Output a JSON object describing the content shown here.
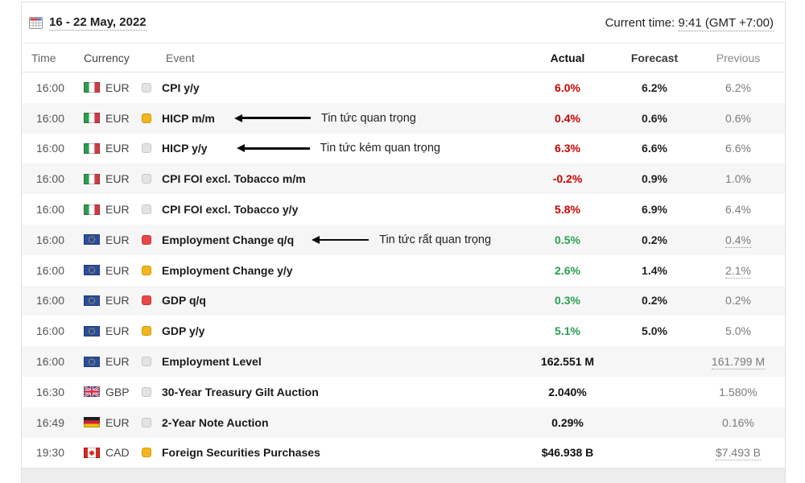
{
  "header": {
    "date_range": "16 - 22 May, 2022",
    "current_time_label": "Current time:",
    "current_time_value": "9:41 (GMT +7:00)"
  },
  "columns": {
    "time": "Time",
    "currency": "Currency",
    "event": "Event",
    "actual": "Actual",
    "forecast": "Forecast",
    "previous": "Previous"
  },
  "colors": {
    "actual_worse": "#cc0000",
    "actual_better": "#2aa052",
    "actual_neutral": "#111111",
    "impact_low": "#e3e3e3",
    "impact_medium": "#f2b51d",
    "impact_high": "#e84747"
  },
  "rows": [
    {
      "time": "16:00",
      "currency": "EUR",
      "flag": "italy",
      "impact": "low",
      "event": "CPI y/y",
      "actual": "6.0%",
      "actual_tone": "worse",
      "forecast": "6.2%",
      "previous": "6.2%",
      "previous_underlined": false
    },
    {
      "time": "16:00",
      "currency": "EUR",
      "flag": "italy",
      "impact": "medium",
      "event": "HICP m/m",
      "annotation": {
        "text": "Tin tức quan trọng",
        "gap": 24,
        "line": 86
      },
      "actual": "0.4%",
      "actual_tone": "worse",
      "forecast": "0.6%",
      "previous": "0.6%",
      "previous_underlined": false
    },
    {
      "time": "16:00",
      "currency": "EUR",
      "flag": "italy",
      "impact": "low",
      "event": "HICP y/y",
      "annotation": {
        "text": "Tin tức kém quan trọng",
        "gap": 36,
        "line": 82
      },
      "actual": "6.3%",
      "actual_tone": "worse",
      "forecast": "6.6%",
      "previous": "6.6%",
      "previous_underlined": false
    },
    {
      "time": "16:00",
      "currency": "EUR",
      "flag": "italy",
      "impact": "low",
      "event": "CPI FOI excl. Tobacco m/m",
      "actual": "-0.2%",
      "actual_tone": "worse",
      "forecast": "0.9%",
      "previous": "1.0%",
      "previous_underlined": false
    },
    {
      "time": "16:00",
      "currency": "EUR",
      "flag": "italy",
      "impact": "low",
      "event": "CPI FOI excl. Tobacco y/y",
      "actual": "5.8%",
      "actual_tone": "worse",
      "forecast": "6.9%",
      "previous": "6.4%",
      "previous_underlined": false
    },
    {
      "time": "16:00",
      "currency": "EUR",
      "flag": "eu",
      "impact": "high",
      "event": "Employment Change q/q",
      "annotation": {
        "text": "Tin tức rất quan trọng",
        "gap": 22,
        "line": 62
      },
      "actual": "0.5%",
      "actual_tone": "better",
      "forecast": "0.2%",
      "previous": "0.4%",
      "previous_underlined": true
    },
    {
      "time": "16:00",
      "currency": "EUR",
      "flag": "eu",
      "impact": "medium",
      "event": "Employment Change y/y",
      "actual": "2.6%",
      "actual_tone": "better",
      "forecast": "1.4%",
      "previous": "2.1%",
      "previous_underlined": true
    },
    {
      "time": "16:00",
      "currency": "EUR",
      "flag": "eu",
      "impact": "high",
      "event": "GDP q/q",
      "actual": "0.3%",
      "actual_tone": "better",
      "forecast": "0.2%",
      "previous": "0.2%",
      "previous_underlined": false
    },
    {
      "time": "16:00",
      "currency": "EUR",
      "flag": "eu",
      "impact": "medium",
      "event": "GDP y/y",
      "actual": "5.1%",
      "actual_tone": "better",
      "forecast": "5.0%",
      "previous": "5.0%",
      "previous_underlined": false
    },
    {
      "time": "16:00",
      "currency": "EUR",
      "flag": "eu",
      "impact": "low",
      "event": "Employment Level",
      "actual": "162.551 M",
      "actual_tone": "neutral",
      "forecast": "",
      "previous": "161.799 M",
      "previous_underlined": true
    },
    {
      "time": "16:30",
      "currency": "GBP",
      "flag": "uk",
      "impact": "low",
      "event": "30-Year Treasury Gilt Auction",
      "actual": "2.040%",
      "actual_tone": "neutral",
      "forecast": "",
      "previous": "1.580%",
      "previous_underlined": false
    },
    {
      "time": "16:49",
      "currency": "EUR",
      "flag": "germany",
      "impact": "low",
      "event": "2-Year Note Auction",
      "actual": "0.29%",
      "actual_tone": "neutral",
      "forecast": "",
      "previous": "0.16%",
      "previous_underlined": false
    },
    {
      "time": "19:30",
      "currency": "CAD",
      "flag": "canada",
      "impact": "medium",
      "event": "Foreign Securities Purchases",
      "actual": "$46.938 B",
      "actual_tone": "neutral",
      "forecast": "",
      "previous": "$7.493 B",
      "previous_underlined": true
    }
  ]
}
